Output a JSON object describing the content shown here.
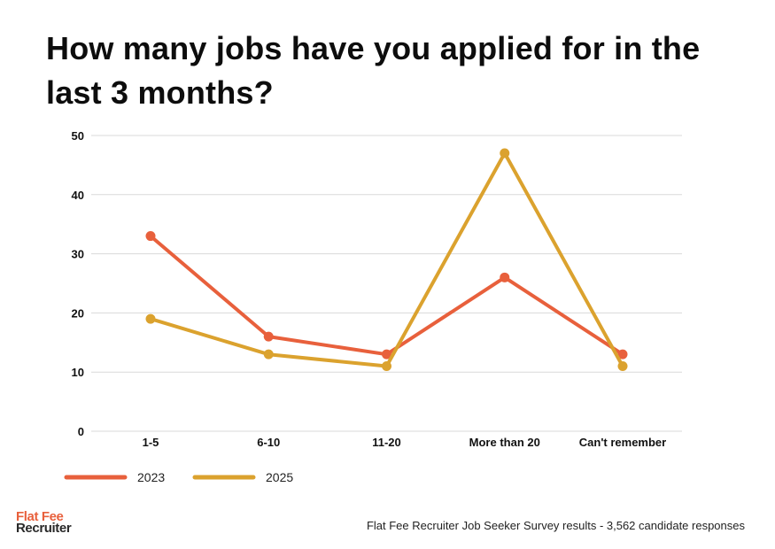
{
  "chart_data": {
    "type": "line",
    "title": "How many jobs have you applied for in the last 3 months?",
    "categories": [
      "1-5",
      "6-10",
      "11-20",
      "More than 20",
      "Can't remember"
    ],
    "series": [
      {
        "name": "2023",
        "values": [
          33,
          16,
          13,
          26,
          13
        ],
        "color": "#e8603c"
      },
      {
        "name": "2025",
        "values": [
          19,
          13,
          11,
          47,
          11
        ],
        "color": "#dba22e"
      }
    ],
    "ylim": [
      0,
      50
    ],
    "yticks": [
      0,
      10,
      20,
      30,
      40,
      50
    ],
    "xlabel": "",
    "ylabel": "",
    "grid": true,
    "legend": "bottom-left"
  },
  "branding": {
    "logo_line1": "Flat Fee",
    "logo_line2": "Recruiter"
  },
  "footer": {
    "source": "Flat Fee Recruiter Job Seeker Survey results - 3,562 candidate responses"
  },
  "colors": {
    "grid": "#d9d9d9",
    "text": "#111111"
  }
}
